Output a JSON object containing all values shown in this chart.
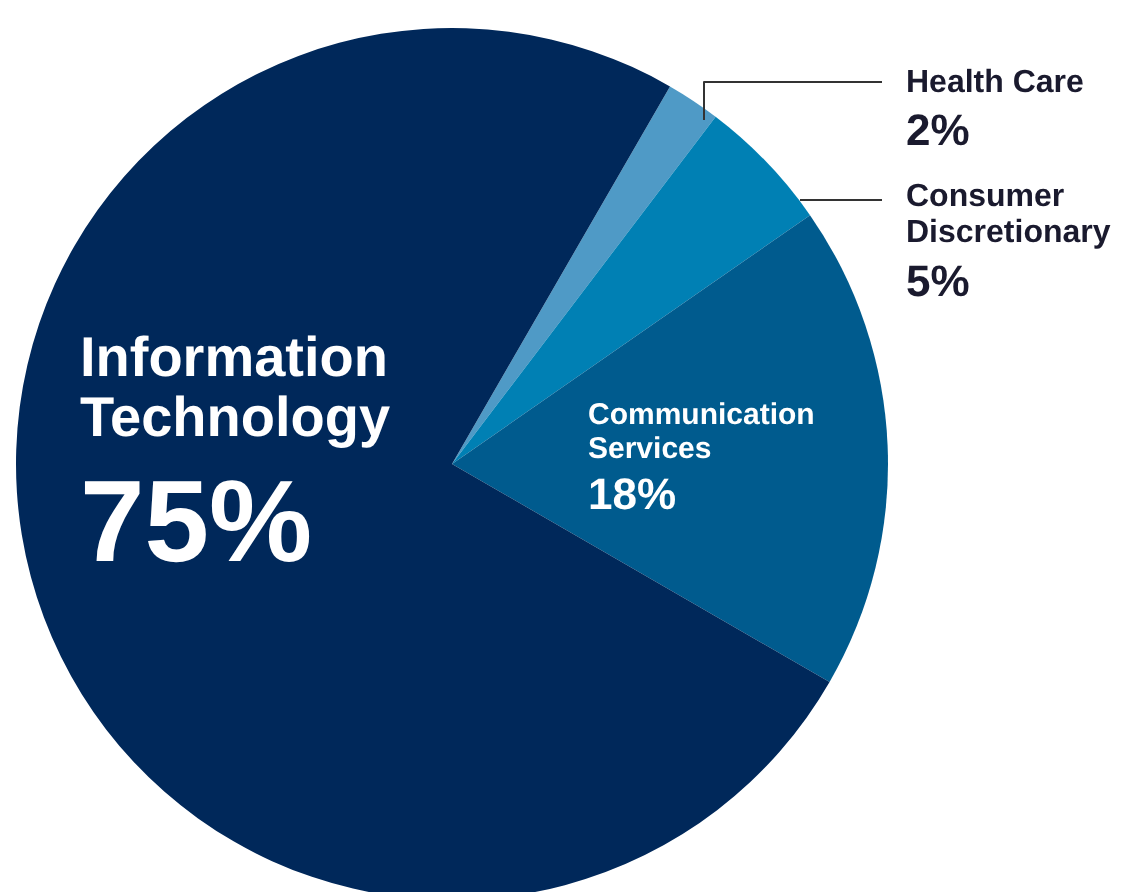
{
  "chart_data": {
    "type": "pie",
    "categories": [
      "Health Care",
      "Consumer Discretionary",
      "Communication Services",
      "Information Technology"
    ],
    "values": [
      2,
      5,
      18,
      75
    ],
    "value_labels": [
      "2%",
      "5%",
      "18%",
      "75%"
    ],
    "colors": [
      "#4f9ac6",
      "#0080b4",
      "#005b8e",
      "#00285a"
    ]
  }
}
